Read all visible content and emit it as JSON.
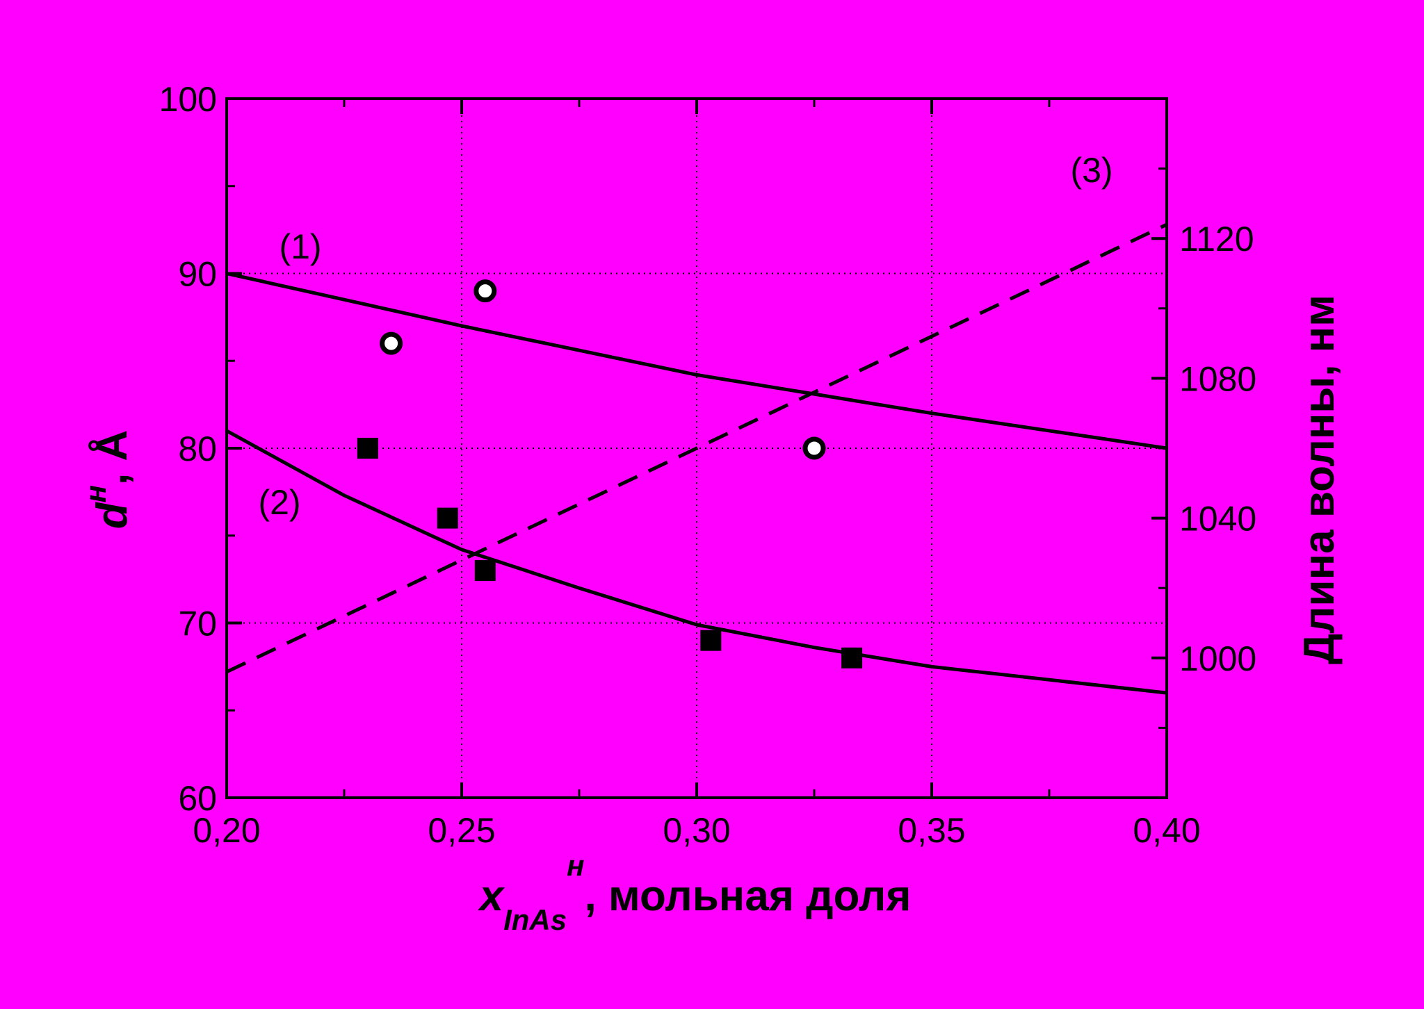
{
  "colors": {
    "background": "#000000",
    "plot_background": "#ff00ff",
    "ink": "#000000",
    "circle_fill": "#ffffff"
  },
  "chart_data": {
    "type": "line",
    "title": "",
    "xlabel": {
      "main": "x",
      "subscript": "InAs",
      "superscript": "н",
      "suffix": ", мольная доля"
    },
    "ylabel": {
      "main": "d",
      "superscript": "н",
      "suffix": ", Å"
    },
    "y2label": "Длина волны, нм",
    "xlim": [
      0.2,
      0.4
    ],
    "ylim": [
      60,
      100
    ],
    "y2lim": [
      960,
      1160
    ],
    "grid": true,
    "x_ticks": [
      {
        "value": 0.2,
        "label": "0,20"
      },
      {
        "value": 0.25,
        "label": "0,25"
      },
      {
        "value": 0.3,
        "label": "0,30"
      },
      {
        "value": 0.35,
        "label": "0,35"
      },
      {
        "value": 0.4,
        "label": "0,40"
      }
    ],
    "y_ticks": [
      {
        "value": 60,
        "label": "60"
      },
      {
        "value": 70,
        "label": "70"
      },
      {
        "value": 80,
        "label": "80"
      },
      {
        "value": 90,
        "label": "90"
      },
      {
        "value": 100,
        "label": "100"
      }
    ],
    "y2_ticks": [
      {
        "value": 1000,
        "label": "1000"
      },
      {
        "value": 1040,
        "label": "1040"
      },
      {
        "value": 1080,
        "label": "1080"
      },
      {
        "value": 1120,
        "label": "1120"
      }
    ],
    "series": [
      {
        "name": "(1)",
        "kind": "line",
        "style": "solid",
        "axis": "left",
        "x": [
          0.2,
          0.25,
          0.3,
          0.35,
          0.4
        ],
        "y": [
          90,
          87,
          84.2,
          82,
          80
        ]
      },
      {
        "name": "(2)",
        "kind": "line",
        "style": "solid",
        "axis": "left",
        "x": [
          0.2,
          0.225,
          0.25,
          0.275,
          0.3,
          0.325,
          0.35,
          0.4
        ],
        "y": [
          81,
          77.3,
          74.2,
          72,
          69.9,
          68.6,
          67.5,
          66
        ]
      },
      {
        "name": "(3)",
        "kind": "line",
        "style": "dashed",
        "axis": "right",
        "x": [
          0.2,
          0.4
        ],
        "y": [
          996,
          1124
        ]
      },
      {
        "kind": "scatter",
        "marker": "circle",
        "axis": "left",
        "x": [
          0.235,
          0.255,
          0.325
        ],
        "y": [
          86,
          89,
          80
        ]
      },
      {
        "kind": "scatter",
        "marker": "square",
        "axis": "left",
        "x": [
          0.23,
          0.247,
          0.255,
          0.303,
          0.333
        ],
        "y": [
          80,
          76,
          73,
          69,
          68
        ]
      }
    ]
  }
}
